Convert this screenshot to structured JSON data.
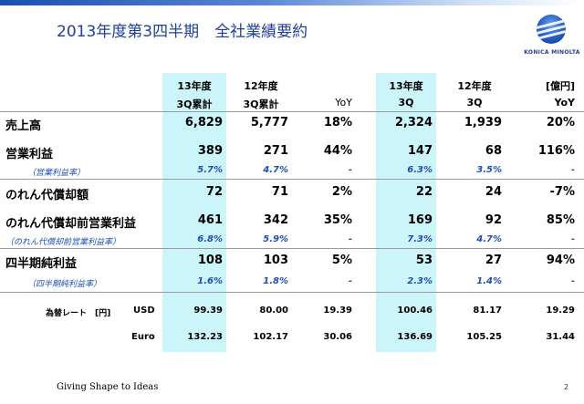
{
  "title": "2013年度第3四半期　全社業績要約",
  "logo": {
    "text": "KONICA MINOLTA"
  },
  "header": {
    "row1": [
      "13年度",
      "12年度",
      "",
      "13年度",
      "12年度",
      "[億円]"
    ],
    "row2": [
      "3Q累計",
      "3Q累計",
      "YoY",
      "3Q",
      "3Q",
      "YoY"
    ]
  },
  "rows": [
    {
      "label": "売上高",
      "values": [
        "6,829",
        "5,777",
        "18%",
        "2,324",
        "1,939",
        "20%"
      ]
    },
    {
      "label": "営業利益",
      "values": [
        "389",
        "271",
        "44%",
        "147",
        "68",
        "116%"
      ]
    },
    {
      "label": "（営業利益率）",
      "values": [
        "5.7%",
        "4.7%",
        "-",
        "6.3%",
        "3.5%",
        "-"
      ]
    },
    {
      "label": "のれん代償却額",
      "values": [
        "72",
        "71",
        "2%",
        "22",
        "24",
        "-7%"
      ]
    },
    {
      "label": "のれん代償却前営業利益",
      "values": [
        "461",
        "342",
        "35%",
        "169",
        "92",
        "85%"
      ]
    },
    {
      "label": "（のれん代償却前営業利益率）",
      "values": [
        "6.8%",
        "5.9%",
        "-",
        "7.3%",
        "4.7%",
        "-"
      ]
    },
    {
      "label": "四半期純利益",
      "values": [
        "108",
        "103",
        "5%",
        "53",
        "27",
        "94%"
      ]
    },
    {
      "label": "（四半期純利益率）",
      "values": [
        "1.6%",
        "1.8%",
        "-",
        "2.3%",
        "1.4%",
        "-"
      ]
    }
  ],
  "fx": {
    "label": "為替レート　[円]",
    "rows": [
      {
        "currency": "USD",
        "values": [
          "99.39",
          "80.00",
          "19.39",
          "100.46",
          "81.17",
          "19.29"
        ]
      },
      {
        "currency": "Euro",
        "values": [
          "132.23",
          "102.17",
          "30.06",
          "136.69",
          "105.25",
          "31.44"
        ]
      }
    ]
  },
  "footer": {
    "tagline": "Giving Shape to Ideas",
    "page": "2"
  }
}
